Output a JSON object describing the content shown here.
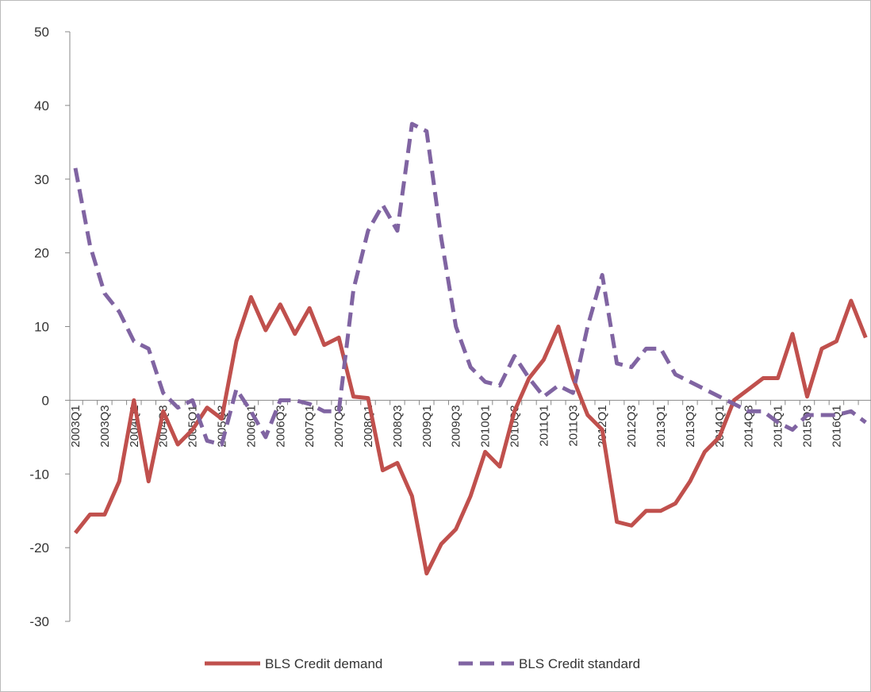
{
  "chart_data": {
    "type": "line",
    "categories": [
      "2003Q1",
      null,
      "2003Q3",
      null,
      "2004Q1",
      null,
      "2004Q3",
      null,
      "2005Q1",
      null,
      "2005Q3",
      null,
      "2006Q1",
      null,
      "2006Q3",
      null,
      "2007Q1",
      null,
      "2007Q3",
      null,
      "2008Q1",
      null,
      "2008Q3",
      null,
      "2009Q1",
      null,
      "2009Q3",
      null,
      "2010Q1",
      null,
      "2010Q3",
      null,
      "2011Q1",
      null,
      "2011Q3",
      null,
      "2012Q1",
      null,
      "2012Q3",
      null,
      "2013Q1",
      null,
      "2013Q3",
      null,
      "2014Q1",
      null,
      "2014Q3",
      null,
      "2015Q1",
      null,
      "2015Q3",
      null,
      "2016Q1",
      null,
      null
    ],
    "series": [
      {
        "name": "BLS Credit demand",
        "color": "#c0504d",
        "dash": false,
        "values": [
          -18,
          -15.5,
          -15.5,
          -11,
          0,
          -11,
          -1.5,
          -6,
          -4,
          -1,
          -2.5,
          8,
          14,
          9.5,
          13,
          9,
          12.5,
          7.5,
          8.5,
          0.5,
          0.3,
          -9.5,
          -8.5,
          -13,
          -23.5,
          -19.5,
          -17.5,
          -13,
          -7,
          -9,
          -1.5,
          3,
          5.5,
          10,
          3,
          -2,
          -4,
          -16.5,
          -17,
          -15,
          -15,
          -14,
          -11,
          -7,
          -5,
          0,
          1.5,
          3,
          3,
          9,
          0.5,
          7,
          8,
          13.5,
          8.5
        ]
      },
      {
        "name": "BLS Credit standard",
        "color": "#8064a2",
        "dash": true,
        "values": [
          31.5,
          21,
          14.5,
          12,
          8,
          7,
          1,
          -1,
          0,
          -5.5,
          -6,
          1.5,
          -1.5,
          -5,
          0,
          0,
          -0.5,
          -1.5,
          -1.5,
          15,
          23,
          26.5,
          23,
          37.5,
          36.5,
          22,
          10,
          4.5,
          2.5,
          2,
          6,
          3,
          0.5,
          2,
          1,
          10,
          17,
          5,
          4.5,
          7,
          7,
          3.5,
          2.5,
          1.5,
          0.5,
          -0.5,
          -1.5,
          -1.5,
          -3,
          -4,
          -2,
          -2,
          -2,
          -1.5,
          -3
        ]
      }
    ],
    "ylim": [
      -30,
      50
    ],
    "yticks": [
      -30,
      -20,
      -10,
      0,
      10,
      20,
      30,
      40,
      50
    ]
  }
}
